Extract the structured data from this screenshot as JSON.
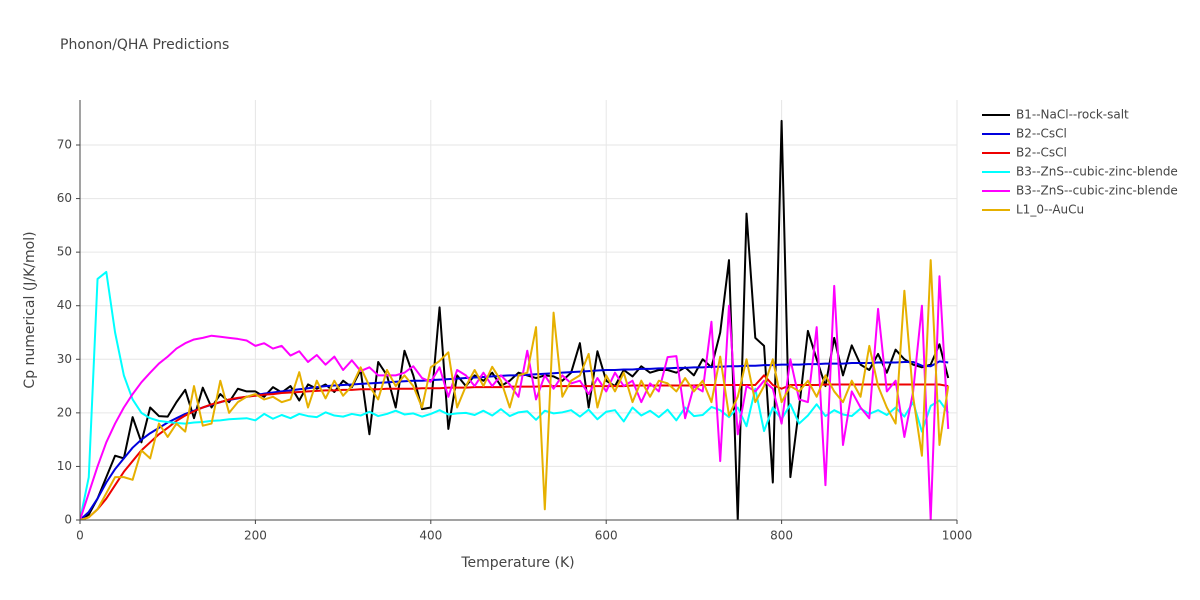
{
  "chart_data": {
    "type": "line",
    "title": "Phonon/QHA Predictions",
    "x_label": "Temperature (K)",
    "y_label": "Cp numerical (J/K/mol)",
    "xlim": [
      0,
      1000
    ],
    "ylim": [
      0,
      78.4
    ],
    "xticks": [
      0,
      200,
      400,
      600,
      800,
      1000
    ],
    "yticks": [
      0,
      10,
      20,
      30,
      40,
      50,
      60,
      70
    ],
    "grid": true,
    "legend": "right",
    "x": [
      0,
      10,
      20,
      30,
      40,
      50,
      60,
      70,
      80,
      90,
      100,
      110,
      120,
      130,
      140,
      150,
      160,
      170,
      180,
      190,
      200,
      210,
      220,
      230,
      240,
      250,
      260,
      270,
      280,
      290,
      300,
      310,
      320,
      330,
      340,
      350,
      360,
      370,
      380,
      390,
      400,
      410,
      420,
      430,
      440,
      450,
      460,
      470,
      480,
      490,
      500,
      510,
      520,
      530,
      540,
      550,
      560,
      570,
      580,
      590,
      600,
      610,
      620,
      630,
      640,
      650,
      660,
      670,
      680,
      690,
      700,
      710,
      720,
      730,
      740,
      750,
      760,
      770,
      780,
      790,
      800,
      810,
      820,
      830,
      840,
      850,
      860,
      870,
      880,
      890,
      900,
      910,
      920,
      930,
      940,
      950,
      960,
      970,
      980,
      990
    ],
    "series": [
      {
        "name": "B1--NaCl--rock-salt",
        "color": "#000000",
        "values": [
          0,
          1,
          4,
          8,
          12,
          11.5,
          19.2,
          14.5,
          21,
          19.4,
          19.3,
          22,
          24.3,
          19,
          24.7,
          21,
          23.5,
          22,
          24.5,
          24,
          24,
          23,
          24.8,
          23.8,
          25,
          22.3,
          25.3,
          24.5,
          25.3,
          23.9,
          26,
          24.8,
          28,
          16,
          29.5,
          27,
          21,
          31.6,
          27,
          20.7,
          21,
          39.7,
          17,
          27,
          25,
          27,
          26,
          27.5,
          25,
          26,
          27.5,
          27,
          26.5,
          27,
          26.8,
          26,
          27.5,
          33,
          21,
          31.5,
          26,
          25,
          28,
          26.8,
          28.7,
          27.5,
          28,
          28,
          27.5,
          28.5,
          27,
          30,
          28.5,
          35,
          48.5,
          0,
          57.2,
          34,
          32.5,
          7,
          74.5,
          8,
          21,
          35.3,
          30,
          25,
          34,
          27,
          32.6,
          29,
          28,
          31,
          27.5,
          31.8,
          30,
          29,
          28.5,
          29,
          32.8,
          26.5
        ]
      },
      {
        "name": "B2--CsCl",
        "color": "#0000dd",
        "values": [
          0,
          1.5,
          4,
          7,
          9.5,
          11.5,
          13.5,
          15,
          16.2,
          17.2,
          18.2,
          19,
          19.8,
          20.4,
          21,
          21.5,
          22,
          22.4,
          22.7,
          23,
          23.3,
          23.6,
          23.8,
          24,
          24.2,
          24.4,
          24.6,
          24.8,
          25,
          25.1,
          25.2,
          25.3,
          25.4,
          25.5,
          25.6,
          25.7,
          25.8,
          25.9,
          26,
          26,
          26.1,
          26.2,
          26.3,
          26.4,
          26.5,
          26.6,
          26.7,
          26.8,
          26.9,
          27,
          27,
          27.1,
          27.2,
          27.3,
          27.4,
          27.5,
          27.6,
          27.7,
          27.8,
          27.9,
          28,
          28,
          28.1,
          28.1,
          28.2,
          28.2,
          28.3,
          28.3,
          28.4,
          28.4,
          28.5,
          28.5,
          28.6,
          28.6,
          28.7,
          28.7,
          28.8,
          28.8,
          28.9,
          28.9,
          29,
          29,
          29,
          29.1,
          29.1,
          29.2,
          29.2,
          29.2,
          29.3,
          29.3,
          29.3,
          29.4,
          29.4,
          29.4,
          29.5,
          29.5,
          28.8,
          28.7,
          29.6,
          29.4
        ]
      },
      {
        "name": "B2--CsCl",
        "color": "#ee0000",
        "values": [
          0,
          0.5,
          2,
          4,
          6.5,
          9,
          11,
          13,
          14.5,
          16,
          17.2,
          18.5,
          19.5,
          20.3,
          21,
          21.6,
          22,
          22.5,
          22.8,
          23,
          23.2,
          23.4,
          23.5,
          23.7,
          23.8,
          23.9,
          24,
          24.1,
          24.2,
          24.2,
          24.3,
          24.3,
          24.4,
          24.4,
          24.4,
          24.5,
          24.5,
          24.5,
          24.5,
          24.6,
          24.6,
          24.6,
          24.7,
          24.7,
          24.7,
          24.8,
          24.8,
          24.8,
          24.8,
          24.9,
          24.9,
          24.9,
          24.9,
          25,
          25,
          25,
          25,
          25,
          25,
          25,
          25,
          25,
          25,
          25.1,
          25.1,
          25.1,
          25.1,
          25.1,
          25.1,
          25.1,
          25.1,
          25.2,
          25.2,
          25.2,
          25.2,
          25.2,
          25.2,
          25.2,
          27,
          25.2,
          24.5,
          25.2,
          25.2,
          25.2,
          25.2,
          25.3,
          25.3,
          25.3,
          25.3,
          25.3,
          25.3,
          25.3,
          25.3,
          25.3,
          25.3,
          25.3,
          25.3,
          25.3,
          25.3,
          25
        ]
      },
      {
        "name": "B3--ZnS--cubic-zinc-blende",
        "color": "#00ffff",
        "values": [
          0,
          8,
          45,
          46.3,
          35,
          27,
          22.5,
          20,
          19,
          18.5,
          18.3,
          18.1,
          18,
          18.2,
          18.3,
          18.5,
          18.6,
          18.8,
          18.9,
          19,
          18.6,
          19.8,
          18.9,
          19.6,
          19,
          19.8,
          19.4,
          19.2,
          20.1,
          19.5,
          19.3,
          19.8,
          19.5,
          20.2,
          19.4,
          19.8,
          20.4,
          19.7,
          19.9,
          19.3,
          19.8,
          20.5,
          19.7,
          19.9,
          20,
          19.6,
          20.4,
          19.5,
          20.7,
          19.4,
          20.1,
          20.3,
          18.7,
          20.4,
          19.9,
          20.1,
          20.5,
          19.3,
          20.6,
          18.8,
          20.2,
          20.5,
          18.4,
          21,
          19.5,
          20.4,
          19.2,
          20.6,
          18.6,
          21,
          19.4,
          19.6,
          21.1,
          20.5,
          19.2,
          21,
          17.5,
          24.5,
          16.6,
          21,
          18.8,
          21.6,
          18,
          19.5,
          21.6,
          19.4,
          20.5,
          19.7,
          19.4,
          20.8,
          19.8,
          20.5,
          19.6,
          21,
          19.3,
          22,
          16.5,
          21.3,
          22.3,
          20
        ]
      },
      {
        "name": "B3--ZnS--cubic-zinc-blende",
        "color": "#ff00ff",
        "values": [
          0,
          5,
          10,
          14.5,
          18,
          21,
          23.5,
          25.7,
          27.5,
          29.2,
          30.5,
          32,
          33,
          33.7,
          34,
          34.4,
          34.2,
          34,
          33.8,
          33.5,
          32.5,
          33,
          32,
          32.5,
          30.7,
          31.5,
          29.5,
          30.8,
          29,
          30.5,
          28,
          29.8,
          27.8,
          28.5,
          27,
          27,
          27,
          27.5,
          28.7,
          26.5,
          25.8,
          28.5,
          23,
          28,
          27,
          25,
          27.5,
          25,
          27,
          25.3,
          23,
          31.6,
          22.5,
          27,
          24.5,
          27,
          25.5,
          26,
          23.5,
          26.5,
          24,
          27.5,
          25,
          26,
          22,
          25.5,
          24,
          30.4,
          30.6,
          19,
          25,
          24,
          37,
          11,
          40,
          16,
          25,
          24,
          26,
          24.5,
          18,
          30,
          22.5,
          22,
          36,
          6.5,
          43.7,
          14,
          24,
          21,
          19,
          39.4,
          24,
          26,
          15.5,
          24,
          40,
          0,
          45.5,
          17
        ]
      },
      {
        "name": "L1_0--AuCu",
        "color": "#e6b000",
        "values": [
          0,
          0.5,
          2,
          5,
          8,
          8,
          7.5,
          13,
          11.5,
          18,
          15.5,
          18,
          16.5,
          25,
          17.6,
          18,
          26,
          20,
          22,
          23,
          23.5,
          22.5,
          23,
          22,
          22.5,
          27.6,
          21,
          26,
          22.7,
          26,
          23.2,
          25,
          28.5,
          25,
          22.5,
          28,
          25,
          27,
          25,
          21,
          28.5,
          29.7,
          31.3,
          21,
          25,
          28,
          25,
          28.6,
          26,
          21,
          27,
          27.5,
          36,
          2,
          38.7,
          23,
          26,
          27,
          31,
          21,
          27,
          24,
          27.5,
          22,
          26,
          23,
          26,
          25.5,
          24,
          26.5,
          24,
          26,
          22,
          30.5,
          19.5,
          23,
          30,
          22,
          25,
          30,
          22,
          25,
          24,
          26,
          23,
          27,
          24,
          22,
          26,
          23,
          32.5,
          25,
          21,
          18,
          42.8,
          23,
          12,
          48.5,
          14,
          25
        ]
      }
    ]
  }
}
